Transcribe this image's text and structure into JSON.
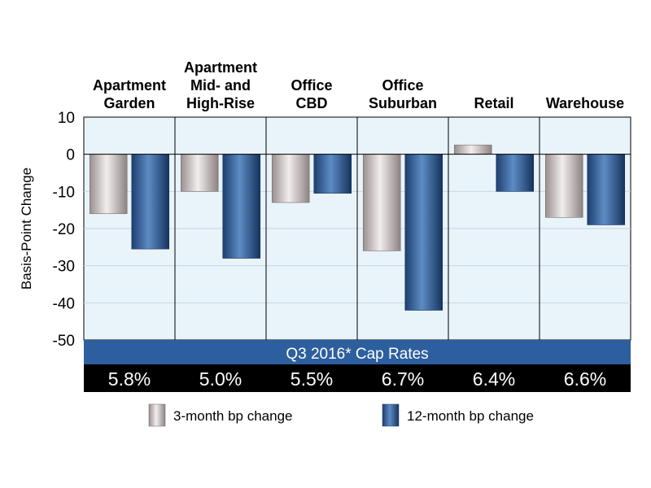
{
  "chart_data": {
    "type": "bar",
    "categories": [
      [
        "Apartment",
        "Garden"
      ],
      [
        "Apartment",
        "Mid- and",
        "High-Rise"
      ],
      [
        "Office",
        "CBD"
      ],
      [
        "Office",
        "Suburban"
      ],
      [
        "Retail"
      ],
      [
        "Warehouse"
      ]
    ],
    "series": [
      {
        "name": "3-month bp change",
        "values": [
          -16,
          -10,
          -13,
          -26,
          2.5,
          -17
        ]
      },
      {
        "name": "12-month bp change",
        "values": [
          -25.5,
          -28,
          -10.5,
          -42,
          -10,
          -19
        ]
      }
    ],
    "ylabel": "Basis-Point Change",
    "ylim": [
      -50,
      10
    ],
    "yticks": [
      10,
      0,
      -10,
      -20,
      -30,
      -40,
      -50
    ],
    "cap_rate_header": "Q3 2016* Cap Rates",
    "cap_rates": [
      "5.8%",
      "5.0%",
      "5.5%",
      "6.7%",
      "6.4%",
      "6.6%"
    ],
    "legend_placement": "bottom",
    "grid": true,
    "colors": {
      "plot_bg": "#e9f3fa",
      "gridline": "#c5d6e2",
      "band_blue": "#2d5f9e",
      "band_black": "#000000",
      "series_3m": "#d6cfcf",
      "series_12m": "#2f5f9a"
    }
  }
}
